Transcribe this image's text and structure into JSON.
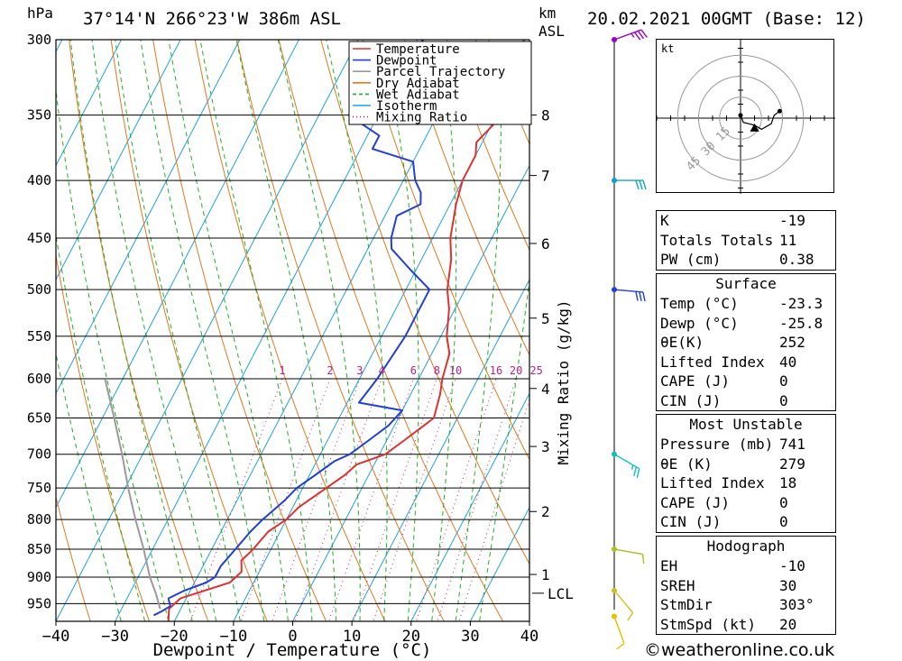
{
  "header": {
    "pressure_unit": "hPa",
    "location": "37°14'N  266°23'W  386m  ASL",
    "km_unit": "km",
    "asl_unit": "ASL",
    "datetime": "20.02.2021  00GMT  (Base: 12)"
  },
  "chart_data": {
    "type": "line",
    "xlabel": "Dewpoint / Temperature (°C)",
    "y_unit": "hPa",
    "xlim": [
      -40,
      40
    ],
    "ylim": [
      300,
      985
    ],
    "y_scale": "log",
    "x_ticks": [
      "−40",
      "−30",
      "−20",
      "−10",
      "0",
      "10",
      "20",
      "30",
      "40"
    ],
    "y_ticks": [
      300,
      350,
      400,
      450,
      500,
      550,
      600,
      650,
      700,
      750,
      800,
      850,
      900,
      950
    ],
    "km_ticks": [
      {
        "label": "8",
        "p": 350
      },
      {
        "label": "7",
        "p": 396
      },
      {
        "label": "6",
        "p": 455
      },
      {
        "label": "5",
        "p": 530
      },
      {
        "label": "4",
        "p": 612
      },
      {
        "label": "3",
        "p": 689
      },
      {
        "label": "2",
        "p": 787
      },
      {
        "label": "1",
        "p": 895
      }
    ],
    "lcl": {
      "label": "LCL",
      "p": 930
    },
    "mixing_ratio_axis_label": "Mixing Ratio (g/kg)",
    "mixing_ratio_labels": [
      "1",
      "2",
      "3",
      "4",
      "6",
      "8",
      "10",
      "16",
      "20",
      "25"
    ],
    "legend": {
      "position": "top-right",
      "entries": [
        {
          "name": "Temperature",
          "color": "#e03030",
          "style": "solid"
        },
        {
          "name": "Dewpoint",
          "color": "#1f3fd8",
          "style": "solid"
        },
        {
          "name": "Parcel Trajectory",
          "color": "#9a9a9a",
          "style": "solid"
        },
        {
          "name": "Dry Adiabat",
          "color": "#e07820",
          "style": "solid"
        },
        {
          "name": "Wet Adiabat",
          "color": "#20b020",
          "style": "dashed"
        },
        {
          "name": "Isotherm",
          "color": "#20a0e0",
          "style": "solid"
        },
        {
          "name": "Mixing Ratio",
          "color": "#c02080",
          "style": "dotted"
        }
      ]
    },
    "series": [
      {
        "name": "Temperature",
        "color": "#e03030",
        "points": [
          [
            985,
            -21
          ],
          [
            960,
            -22
          ],
          [
            940,
            -21
          ],
          [
            910,
            -14
          ],
          [
            890,
            -13
          ],
          [
            870,
            -14
          ],
          [
            850,
            -13
          ],
          [
            820,
            -12
          ],
          [
            800,
            -10
          ],
          [
            780,
            -9
          ],
          [
            760,
            -7
          ],
          [
            750,
            -6
          ],
          [
            730,
            -4
          ],
          [
            715,
            -3
          ],
          [
            700,
            1
          ],
          [
            680,
            3
          ],
          [
            660,
            5
          ],
          [
            650,
            6
          ],
          [
            620,
            5
          ],
          [
            600,
            4
          ],
          [
            570,
            3
          ],
          [
            550,
            1
          ],
          [
            520,
            -1
          ],
          [
            500,
            -3
          ],
          [
            470,
            -5
          ],
          [
            450,
            -7
          ],
          [
            420,
            -9
          ],
          [
            400,
            -10
          ],
          [
            380,
            -10
          ],
          [
            370,
            -11
          ],
          [
            360,
            -10
          ],
          [
            350,
            -9
          ],
          [
            330,
            -10
          ],
          [
            300,
            -12
          ]
        ]
      },
      {
        "name": "Dewpoint",
        "color": "#1f3fd8",
        "points": [
          [
            973,
            -24
          ],
          [
            965,
            -23
          ],
          [
            955,
            -22
          ],
          [
            940,
            -23
          ],
          [
            925,
            -21
          ],
          [
            910,
            -18
          ],
          [
            900,
            -17
          ],
          [
            880,
            -17
          ],
          [
            850,
            -16
          ],
          [
            820,
            -15
          ],
          [
            800,
            -14
          ],
          [
            770,
            -12
          ],
          [
            750,
            -11
          ],
          [
            730,
            -9
          ],
          [
            710,
            -7
          ],
          [
            700,
            -5
          ],
          [
            680,
            -3
          ],
          [
            660,
            -1
          ],
          [
            640,
            0
          ],
          [
            630,
            -8
          ],
          [
            600,
            -7
          ],
          [
            550,
            -6
          ],
          [
            500,
            -6
          ],
          [
            480,
            -11
          ],
          [
            460,
            -16
          ],
          [
            450,
            -17
          ],
          [
            430,
            -18
          ],
          [
            420,
            -15
          ],
          [
            410,
            -16
          ],
          [
            400,
            -18
          ],
          [
            385,
            -20
          ],
          [
            375,
            -28
          ],
          [
            365,
            -28
          ],
          [
            350,
            -35
          ],
          [
            330,
            -31
          ],
          [
            300,
            -29
          ]
        ]
      },
      {
        "name": "Parcel Trajectory",
        "color": "#9a9a9a",
        "points": [
          [
            960,
            -23.5
          ],
          [
            930,
            -25.6
          ],
          [
            900,
            -28.0
          ],
          [
            850,
            -31.5
          ],
          [
            800,
            -35.5
          ],
          [
            750,
            -39.5
          ],
          [
            700,
            -43.5
          ],
          [
            650,
            -48
          ],
          [
            600,
            -53
          ]
        ]
      }
    ],
    "dry_adiabats_K": [
      240,
      250,
      260,
      270,
      280,
      290,
      300,
      310,
      320,
      330,
      340,
      350,
      360,
      370,
      380,
      390,
      400,
      410,
      420,
      430,
      440,
      450
    ],
    "wet_adiabats_C": [
      -28,
      -24,
      -20,
      -16,
      -12,
      -8,
      -4,
      0,
      4,
      8,
      12,
      16,
      20,
      24,
      28,
      32
    ],
    "mixing_ratios_gkg": [
      1,
      2,
      3,
      4,
      6,
      8,
      10,
      16,
      20,
      25
    ],
    "wind_barbs": [
      {
        "p": 300,
        "dir_deg": 250,
        "speed_kt": 35,
        "color": "#9900cc"
      },
      {
        "p": 400,
        "dir_deg": 270,
        "speed_kt": 30,
        "color": "#10a0d0"
      },
      {
        "p": 500,
        "dir_deg": 275,
        "speed_kt": 30,
        "color": "#1f3fd8"
      },
      {
        "p": 700,
        "dir_deg": 300,
        "speed_kt": 25,
        "color": "#10c0c0"
      },
      {
        "p": 850,
        "dir_deg": 280,
        "speed_kt": 10,
        "color": "#a8c020"
      },
      {
        "p": 925,
        "dir_deg": 320,
        "speed_kt": 10,
        "color": "#d0c020"
      },
      {
        "p": 975,
        "dir_deg": 340,
        "speed_kt": 10,
        "color": "#e8c000"
      }
    ]
  },
  "hodograph": {
    "unit_label": "kt",
    "ring_labels": [
      "15",
      "30",
      "45"
    ],
    "ring_speeds_kt": [
      15,
      30,
      45
    ],
    "trace_uv_kt": [
      [
        0,
        2
      ],
      [
        2,
        -3
      ],
      [
        10,
        -5
      ],
      [
        15,
        -8
      ],
      [
        22,
        -4
      ],
      [
        24,
        2
      ],
      [
        28,
        5
      ]
    ],
    "storm_motion_uv_kt": [
      10,
      -7
    ]
  },
  "indices": [
    {
      "label": "K",
      "value": "-19"
    },
    {
      "label": "Totals Totals",
      "value": "11"
    },
    {
      "label": "PW (cm)",
      "value": "0.38"
    }
  ],
  "surface": {
    "title": "Surface",
    "rows": [
      {
        "label": "Temp (°C)",
        "value": "-23.3"
      },
      {
        "label": "Dewp (°C)",
        "value": "-25.8"
      },
      {
        "label": "θE(K)",
        "value": "252"
      },
      {
        "label": "Lifted Index",
        "value": "40"
      },
      {
        "label": "CAPE (J)",
        "value": "0"
      },
      {
        "label": "CIN (J)",
        "value": "0"
      }
    ]
  },
  "most_unstable": {
    "title": "Most Unstable",
    "rows": [
      {
        "label": "Pressure (mb)",
        "value": "741"
      },
      {
        "label": "θE (K)",
        "value": "279"
      },
      {
        "label": "Lifted Index",
        "value": "18"
      },
      {
        "label": "CAPE (J)",
        "value": "0"
      },
      {
        "label": "CIN (J)",
        "value": "0"
      }
    ]
  },
  "hodograph_indices": {
    "title": "Hodograph",
    "rows": [
      {
        "label": "EH",
        "value": "-10"
      },
      {
        "label": "SREH",
        "value": "30"
      },
      {
        "label": "StmDir",
        "value": "303°"
      },
      {
        "label": "StmSpd (kt)",
        "value": "20"
      }
    ]
  },
  "credit": "©weatheronline.co.uk"
}
